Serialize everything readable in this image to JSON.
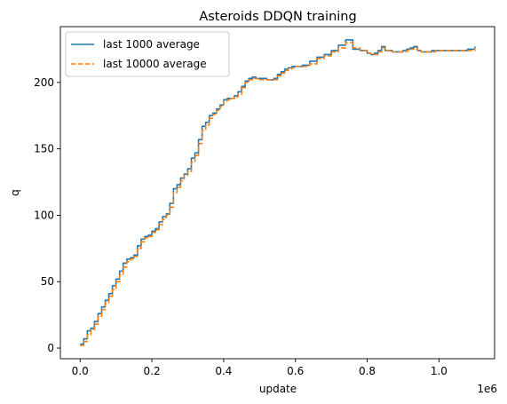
{
  "chart_data": {
    "type": "line",
    "title": "Asteroids DDQN training",
    "xlabel": "update",
    "ylabel": "q",
    "x_offset_label": "1e6",
    "xlim": [
      -55000,
      1155000
    ],
    "ylim": [
      -8,
      242
    ],
    "xticks": [
      0.0,
      0.2,
      0.4,
      0.6,
      0.8,
      1.0
    ],
    "xtick_labels": [
      "0.0",
      "0.2",
      "0.4",
      "0.6",
      "0.8",
      "1.0"
    ],
    "yticks": [
      0,
      50,
      100,
      150,
      200
    ],
    "ytick_labels": [
      "0",
      "50",
      "100",
      "150",
      "200"
    ],
    "grid": false,
    "legend_position": "top-left",
    "series": [
      {
        "name": "last 1000 average",
        "color": "#1f77b4",
        "style": "solid",
        "x": [
          0,
          10000,
          20000,
          30000,
          40000,
          50000,
          60000,
          70000,
          80000,
          90000,
          100000,
          110000,
          120000,
          130000,
          140000,
          150000,
          160000,
          170000,
          180000,
          190000,
          200000,
          210000,
          220000,
          230000,
          240000,
          250000,
          260000,
          270000,
          280000,
          290000,
          300000,
          310000,
          320000,
          330000,
          340000,
          350000,
          360000,
          370000,
          380000,
          390000,
          400000,
          410000,
          420000,
          430000,
          440000,
          450000,
          460000,
          470000,
          480000,
          490000,
          500000,
          510000,
          520000,
          530000,
          540000,
          550000,
          560000,
          570000,
          580000,
          590000,
          600000,
          620000,
          640000,
          660000,
          680000,
          700000,
          720000,
          740000,
          760000,
          780000,
          800000,
          810000,
          820000,
          830000,
          840000,
          850000,
          860000,
          870000,
          880000,
          890000,
          900000,
          910000,
          920000,
          930000,
          940000,
          950000,
          960000,
          970000,
          980000,
          990000,
          1000000,
          1020000,
          1040000,
          1060000,
          1080000,
          1100000
        ],
        "y": [
          3,
          7,
          13,
          15,
          20,
          26,
          31,
          36,
          41,
          47,
          52,
          58,
          64,
          67,
          68,
          70,
          77,
          82,
          84,
          85,
          88,
          90,
          95,
          99,
          101,
          109,
          120,
          123,
          128,
          131,
          135,
          143,
          147,
          157,
          167,
          170,
          175,
          177,
          180,
          183,
          187,
          188,
          188,
          190,
          193,
          197,
          201,
          203,
          204,
          203,
          203,
          203,
          202,
          202,
          203,
          206,
          208,
          210,
          211,
          212,
          212,
          213,
          216,
          219,
          221,
          224,
          228,
          232,
          225,
          224,
          222,
          221,
          222,
          224,
          227,
          224,
          224,
          223,
          223,
          223,
          224,
          225,
          226,
          227,
          224,
          223,
          223,
          223,
          224,
          224,
          224,
          224,
          224,
          224,
          225,
          227
        ]
      },
      {
        "name": "last 10000 average",
        "color": "#ff7f0e",
        "style": "dashed",
        "x": [
          0,
          10000,
          20000,
          30000,
          40000,
          50000,
          60000,
          70000,
          80000,
          90000,
          100000,
          110000,
          120000,
          130000,
          140000,
          150000,
          160000,
          170000,
          180000,
          190000,
          200000,
          210000,
          220000,
          230000,
          240000,
          250000,
          260000,
          270000,
          280000,
          290000,
          300000,
          310000,
          320000,
          330000,
          340000,
          350000,
          360000,
          370000,
          380000,
          390000,
          400000,
          410000,
          420000,
          430000,
          440000,
          450000,
          460000,
          470000,
          480000,
          490000,
          500000,
          510000,
          520000,
          530000,
          540000,
          550000,
          560000,
          570000,
          580000,
          590000,
          600000,
          620000,
          640000,
          660000,
          680000,
          700000,
          720000,
          740000,
          760000,
          780000,
          800000,
          810000,
          820000,
          830000,
          840000,
          850000,
          860000,
          870000,
          880000,
          890000,
          900000,
          910000,
          920000,
          930000,
          940000,
          950000,
          960000,
          970000,
          980000,
          990000,
          1000000,
          1020000,
          1040000,
          1060000,
          1080000,
          1100000
        ],
        "y": [
          2,
          5,
          10,
          14,
          18,
          24,
          29,
          34,
          39,
          44,
          50,
          55,
          61,
          65,
          67,
          69,
          75,
          80,
          83,
          84,
          87,
          89,
          93,
          97,
          100,
          106,
          117,
          121,
          126,
          130,
          133,
          140,
          145,
          154,
          164,
          168,
          173,
          176,
          179,
          182,
          186,
          187,
          188,
          189,
          191,
          196,
          200,
          202,
          203,
          203,
          202,
          202,
          202,
          202,
          202,
          205,
          207,
          209,
          210,
          211,
          212,
          212,
          214,
          218,
          220,
          223,
          226,
          230,
          226,
          224,
          222,
          221,
          221,
          223,
          226,
          224,
          224,
          223,
          223,
          223,
          223,
          224,
          225,
          226,
          224,
          223,
          223,
          223,
          223,
          224,
          224,
          224,
          224,
          224,
          224,
          226
        ]
      }
    ]
  }
}
